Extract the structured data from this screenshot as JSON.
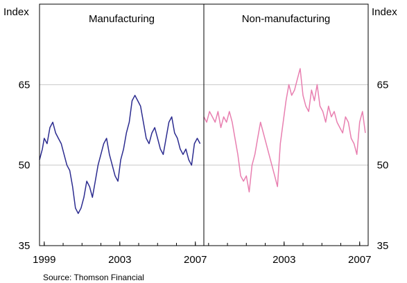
{
  "chart_data": [
    {
      "type": "line",
      "title": "Manufacturing",
      "ylabel_left": "Index",
      "yticks": [
        "35",
        "50",
        "65"
      ],
      "ylim": [
        35,
        80
      ],
      "xticks": [
        "1999",
        "2003",
        "2007"
      ],
      "xlim": [
        1998.75,
        2007.45
      ],
      "grid": true,
      "series": [
        {
          "color": "#2b2b8f",
          "x": [
            1998.75,
            1998.9,
            1999.0,
            1999.15,
            1999.3,
            1999.45,
            1999.6,
            1999.75,
            1999.9,
            2000.05,
            2000.2,
            2000.35,
            2000.5,
            2000.65,
            2000.8,
            2000.95,
            2001.1,
            2001.25,
            2001.4,
            2001.55,
            2001.7,
            2001.85,
            2002.0,
            2002.15,
            2002.3,
            2002.45,
            2002.6,
            2002.75,
            2002.9,
            2003.05,
            2003.2,
            2003.35,
            2003.5,
            2003.65,
            2003.8,
            2003.95,
            2004.1,
            2004.25,
            2004.4,
            2004.55,
            2004.7,
            2004.85,
            2005.0,
            2005.15,
            2005.3,
            2005.45,
            2005.6,
            2005.75,
            2005.9,
            2006.05,
            2006.2,
            2006.35,
            2006.5,
            2006.65,
            2006.8,
            2006.95,
            2007.1,
            2007.25
          ],
          "y": [
            51,
            53,
            55,
            54,
            57,
            58,
            56,
            55,
            54,
            52,
            50,
            49,
            46,
            42,
            41,
            42,
            44,
            47,
            46,
            44,
            47,
            50,
            52,
            54,
            55,
            52,
            50,
            48,
            47,
            51,
            53,
            56,
            58,
            62,
            63,
            62,
            61,
            58,
            55,
            54,
            56,
            57,
            55,
            53,
            52,
            55,
            58,
            59,
            56,
            55,
            53,
            52,
            53,
            51,
            50,
            54,
            55,
            54
          ]
        }
      ]
    },
    {
      "type": "line",
      "title": "Non-manufacturing",
      "ylabel_right": "Index",
      "yticks": [
        "35",
        "50",
        "65"
      ],
      "ylim": [
        35,
        80
      ],
      "xticks": [
        "2003",
        "2007"
      ],
      "xlim": [
        1998.75,
        2007.45
      ],
      "grid": true,
      "series": [
        {
          "color": "#e87fb0",
          "x": [
            1998.75,
            1998.9,
            1999.05,
            1999.2,
            1999.35,
            1999.5,
            1999.65,
            1999.8,
            1999.95,
            2000.1,
            2000.25,
            2000.4,
            2000.55,
            2000.7,
            2000.85,
            2001.0,
            2001.15,
            2001.3,
            2001.45,
            2001.6,
            2001.75,
            2001.9,
            2002.05,
            2002.2,
            2002.35,
            2002.5,
            2002.65,
            2002.8,
            2002.95,
            2003.1,
            2003.25,
            2003.4,
            2003.55,
            2003.7,
            2003.85,
            2004.0,
            2004.15,
            2004.3,
            2004.45,
            2004.6,
            2004.75,
            2004.9,
            2005.05,
            2005.2,
            2005.35,
            2005.5,
            2005.65,
            2005.8,
            2005.95,
            2006.1,
            2006.25,
            2006.4,
            2006.55,
            2006.7,
            2006.85,
            2007.0,
            2007.15,
            2007.3
          ],
          "y": [
            59,
            58,
            60,
            59,
            58,
            60,
            57,
            59,
            58,
            60,
            58,
            55,
            52,
            48,
            47,
            48,
            45,
            50,
            52,
            55,
            58,
            56,
            54,
            52,
            50,
            48,
            46,
            54,
            58,
            62,
            65,
            63,
            64,
            66,
            68,
            63,
            61,
            60,
            64,
            62,
            65,
            61,
            60,
            58,
            61,
            59,
            60,
            58,
            57,
            56,
            59,
            58,
            55,
            54,
            52,
            58,
            60,
            56
          ]
        }
      ]
    }
  ],
  "source": "Source: Thomson Financial"
}
